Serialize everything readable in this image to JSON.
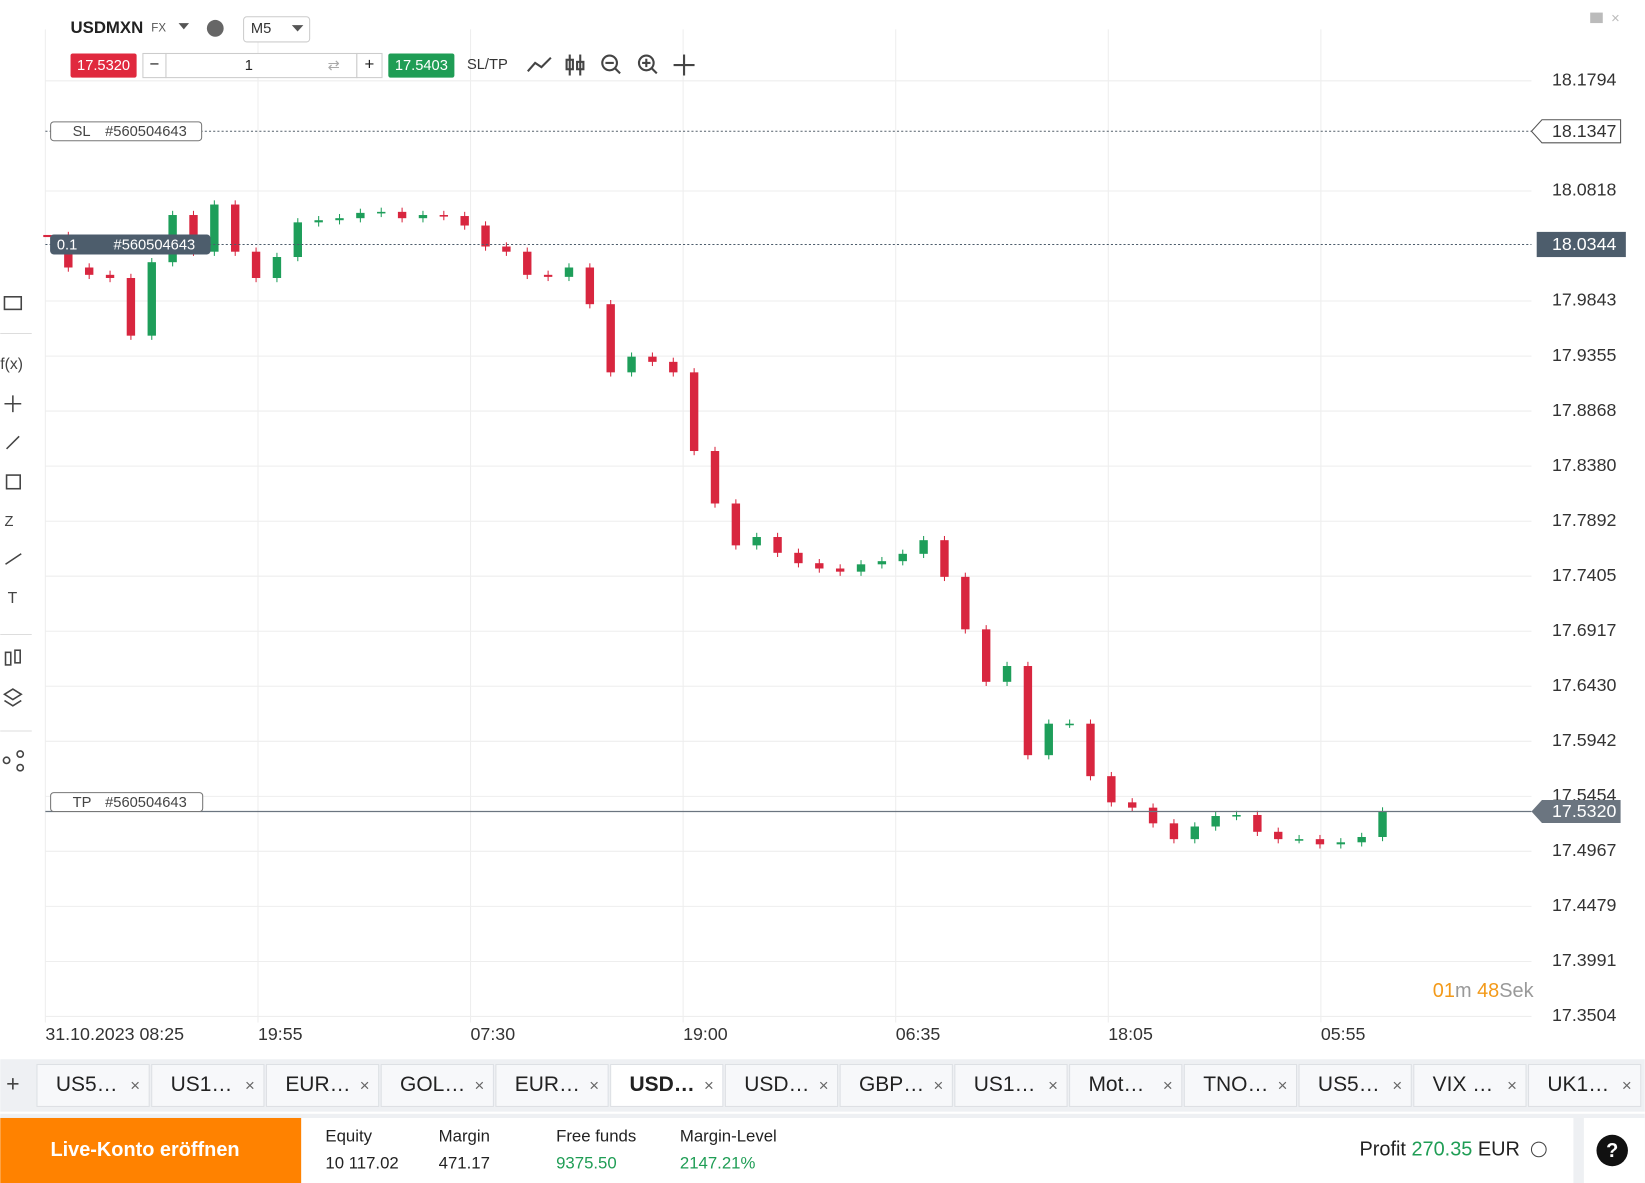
{
  "header": {
    "symbol": "USDMXN",
    "market": "FX",
    "timeframe": "M5",
    "bid": "17.5320",
    "quantity": "1",
    "ask": "17.5403",
    "sltp": "SL/TP"
  },
  "chart_data": {
    "type": "candlestick",
    "values": [
      18.0419,
      18.014,
      18.0075,
      18.0047,
      17.9536,
      18.0187,
      18.0605,
      18.028,
      18.0698,
      18.028,
      18.0047,
      18.0233,
      18.054,
      18.0559,
      18.0577,
      18.0624,
      18.0633,
      18.0577,
      18.0605,
      18.0596,
      18.0512,
      18.0326,
      18.028,
      18.0075,
      18.0057,
      18.014,
      17.9815,
      17.9211,
      17.935,
      17.9304,
      17.9211,
      17.8514,
      17.8049,
      17.7678,
      17.7752,
      17.7612,
      17.752,
      17.7473,
      17.7445,
      17.751,
      17.7538,
      17.7603,
      17.7724,
      17.7399,
      17.6934,
      17.6469,
      17.6609,
      17.5819,
      17.6098,
      17.6098,
      17.5633,
      17.5401,
      17.5354,
      17.5215,
      17.5075,
      17.5187,
      17.528,
      17.5289,
      17.514,
      17.5075,
      17.5075,
      17.5029,
      17.5047,
      17.5094,
      17.532
    ],
    "up_color": "#1e9e5a",
    "down_color": "#d8263f",
    "ylim": [
      17.345,
      18.225
    ],
    "yticks": [
      18.1794,
      18.0818,
      17.9843,
      17.9355,
      17.8868,
      {
        "value": 17.838,
        "label": "17.8380"
      },
      17.7892,
      17.7405,
      17.6917,
      {
        "value": 17.643,
        "label": "17.6430"
      },
      17.5942,
      17.5454,
      17.4967,
      17.4479,
      17.3991,
      17.3504
    ],
    "xtick_labels": [
      "31.10.2023 08:25",
      "19:55",
      "07:30",
      "19:00",
      "06:35",
      "18:05",
      "05:55"
    ],
    "grid": true,
    "sl": {
      "tag": "SL",
      "order": "#560504643",
      "price": 18.1347
    },
    "position": {
      "size": "0.1",
      "order": "#560504643",
      "price": 18.0344
    },
    "tp": {
      "tag": "TP",
      "order": "#560504643"
    },
    "current": {
      "value": 17.532,
      "label": "17.5320"
    },
    "timer": {
      "minutes": "01",
      "minutes_unit": "m",
      "seconds": "48",
      "seconds_unit": "Sek"
    }
  },
  "tabs": [
    "US5…",
    "US1…",
    "EUR…",
    "GOL…",
    "EUR…",
    "USD…",
    "USD…",
    "GBP…",
    "US1…",
    "Mot…",
    "TNO…",
    "US5…",
    "VIX …",
    "UK1…"
  ],
  "footer": {
    "button": "Live-Konto eröffnen",
    "stats": [
      {
        "label": "Equity",
        "value": "10 117.02"
      },
      {
        "label": "Margin",
        "value": "471.17"
      },
      {
        "label": "Free funds",
        "value": "9375.50"
      },
      {
        "label": "Margin-Level",
        "value": "2147.21%"
      }
    ],
    "profit_label": "Profit",
    "profit": "270.35",
    "currency": "EUR",
    "help": "?"
  }
}
